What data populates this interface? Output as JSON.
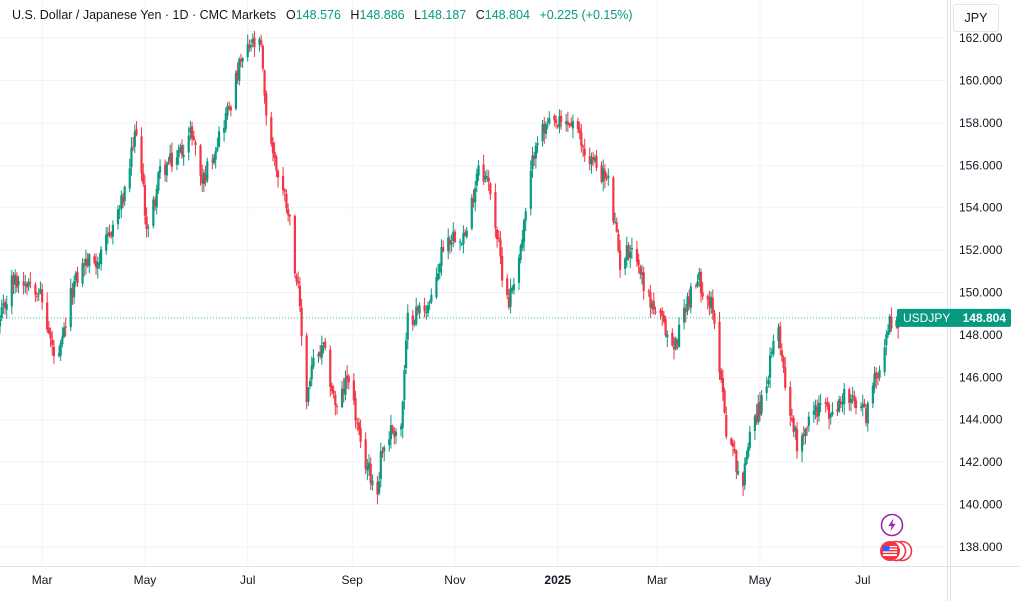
{
  "legend": {
    "symbol_title": "U.S. Dollar / Japanese Yen · 1D · CMC Markets",
    "o_label": "O",
    "o_value": "148.576",
    "h_label": "H",
    "h_value": "148.886",
    "l_label": "L",
    "l_value": "148.187",
    "c_label": "C",
    "c_value": "148.804",
    "change": "+0.225 (+0.15%)"
  },
  "price_scale": {
    "currency": "JPY",
    "last_label": "USDJPY",
    "last_value": "148.804"
  },
  "colors": {
    "up": "#089981",
    "down": "#f23645",
    "grid": "#f0f3fa",
    "axis_text": "#131722",
    "last_line": "#089981",
    "event_purple": "#9c27b0",
    "event_red": "#f23645"
  },
  "icons": {
    "alert": "lightning-bolt-icon",
    "event": "us-flag-economic-event-icon"
  },
  "chart_data": {
    "type": "candlestick",
    "title": "U.S. Dollar / Japanese Yen · 1D · CMC Markets",
    "x_ticks": [
      "Mar",
      "May",
      "Jul",
      "Sep",
      "Nov",
      "2025",
      "Mar",
      "May",
      "Jul"
    ],
    "y_ticks": [
      "138.000",
      "140.000",
      "142.000",
      "144.000",
      "146.000",
      "148.000",
      "150.000",
      "152.000",
      "154.000",
      "156.000",
      "158.000",
      "160.000",
      "162.000"
    ],
    "ylim": [
      137.1,
      163.8
    ],
    "x_range": [
      "2024-02-05",
      "2025-08-20"
    ],
    "grid": true,
    "last_price": 148.804,
    "anchors": [
      [
        "2024-02-05",
        148.6
      ],
      [
        "2024-02-12",
        150.5
      ],
      [
        "2024-02-22",
        150.6
      ],
      [
        "2024-02-28",
        150.2
      ],
      [
        "2024-03-08",
        147.0
      ],
      [
        "2024-03-11",
        146.8
      ],
      [
        "2024-03-19",
        150.2
      ],
      [
        "2024-03-26",
        151.4
      ],
      [
        "2024-04-05",
        151.6
      ],
      [
        "2024-04-12",
        153.2
      ],
      [
        "2024-04-19",
        154.6
      ],
      [
        "2024-04-26",
        157.8
      ],
      [
        "2024-05-02",
        153.2
      ],
      [
        "2024-05-03",
        152.9
      ],
      [
        "2024-05-10",
        155.7
      ],
      [
        "2024-05-20",
        156.4
      ],
      [
        "2024-05-29",
        157.6
      ],
      [
        "2024-06-04",
        155.2
      ],
      [
        "2024-06-13",
        157.2
      ],
      [
        "2024-06-21",
        159.0
      ],
      [
        "2024-06-26",
        160.6
      ],
      [
        "2024-07-03",
        161.7
      ],
      [
        "2024-07-09",
        161.5
      ],
      [
        "2024-07-11",
        159.0
      ],
      [
        "2024-07-17",
        156.2
      ],
      [
        "2024-07-25",
        154.0
      ],
      [
        "2024-07-31",
        150.0
      ],
      [
        "2024-08-05",
        145.0
      ],
      [
        "2024-08-08",
        146.5
      ],
      [
        "2024-08-15",
        147.3
      ],
      [
        "2024-08-23",
        144.4
      ],
      [
        "2024-08-30",
        146.2
      ],
      [
        "2024-09-06",
        142.6
      ],
      [
        "2024-09-16",
        140.6
      ],
      [
        "2024-09-18",
        142.4
      ],
      [
        "2024-09-24",
        143.5
      ],
      [
        "2024-09-30",
        143.6
      ],
      [
        "2024-10-04",
        148.7
      ],
      [
        "2024-10-11",
        149.2
      ],
      [
        "2024-10-18",
        149.5
      ],
      [
        "2024-10-25",
        152.3
      ],
      [
        "2024-11-01",
        152.8
      ],
      [
        "2024-11-08",
        152.7
      ],
      [
        "2024-11-15",
        156.2
      ],
      [
        "2024-11-22",
        154.9
      ],
      [
        "2024-11-29",
        151.0
      ],
      [
        "2024-12-03",
        149.6
      ],
      [
        "2024-12-11",
        152.5
      ],
      [
        "2024-12-19",
        157.3
      ],
      [
        "2024-12-27",
        157.8
      ],
      [
        "2025-01-10",
        158.0
      ],
      [
        "2025-01-17",
        156.6
      ],
      [
        "2025-01-24",
        156.0
      ],
      [
        "2025-01-31",
        155.2
      ],
      [
        "2025-02-07",
        151.4
      ],
      [
        "2025-02-14",
        152.3
      ],
      [
        "2025-02-24",
        149.7
      ],
      [
        "2025-03-03",
        148.7
      ],
      [
        "2025-03-11",
        147.3
      ],
      [
        "2025-03-18",
        149.5
      ],
      [
        "2025-03-26",
        150.6
      ],
      [
        "2025-04-02",
        149.4
      ],
      [
        "2025-04-08",
        146.1
      ],
      [
        "2025-04-11",
        143.6
      ],
      [
        "2025-04-21",
        140.9
      ],
      [
        "2025-04-25",
        143.7
      ],
      [
        "2025-05-02",
        144.8
      ],
      [
        "2025-05-12",
        148.4
      ],
      [
        "2025-05-16",
        145.7
      ],
      [
        "2025-05-23",
        142.9
      ],
      [
        "2025-05-30",
        144.0
      ],
      [
        "2025-06-06",
        144.8
      ],
      [
        "2025-06-13",
        144.1
      ],
      [
        "2025-06-20",
        145.2
      ],
      [
        "2025-06-27",
        144.6
      ],
      [
        "2025-07-03",
        144.3
      ],
      [
        "2025-07-10",
        146.4
      ],
      [
        "2025-07-17",
        148.6
      ],
      [
        "2025-07-23",
        148.8
      ]
    ]
  }
}
